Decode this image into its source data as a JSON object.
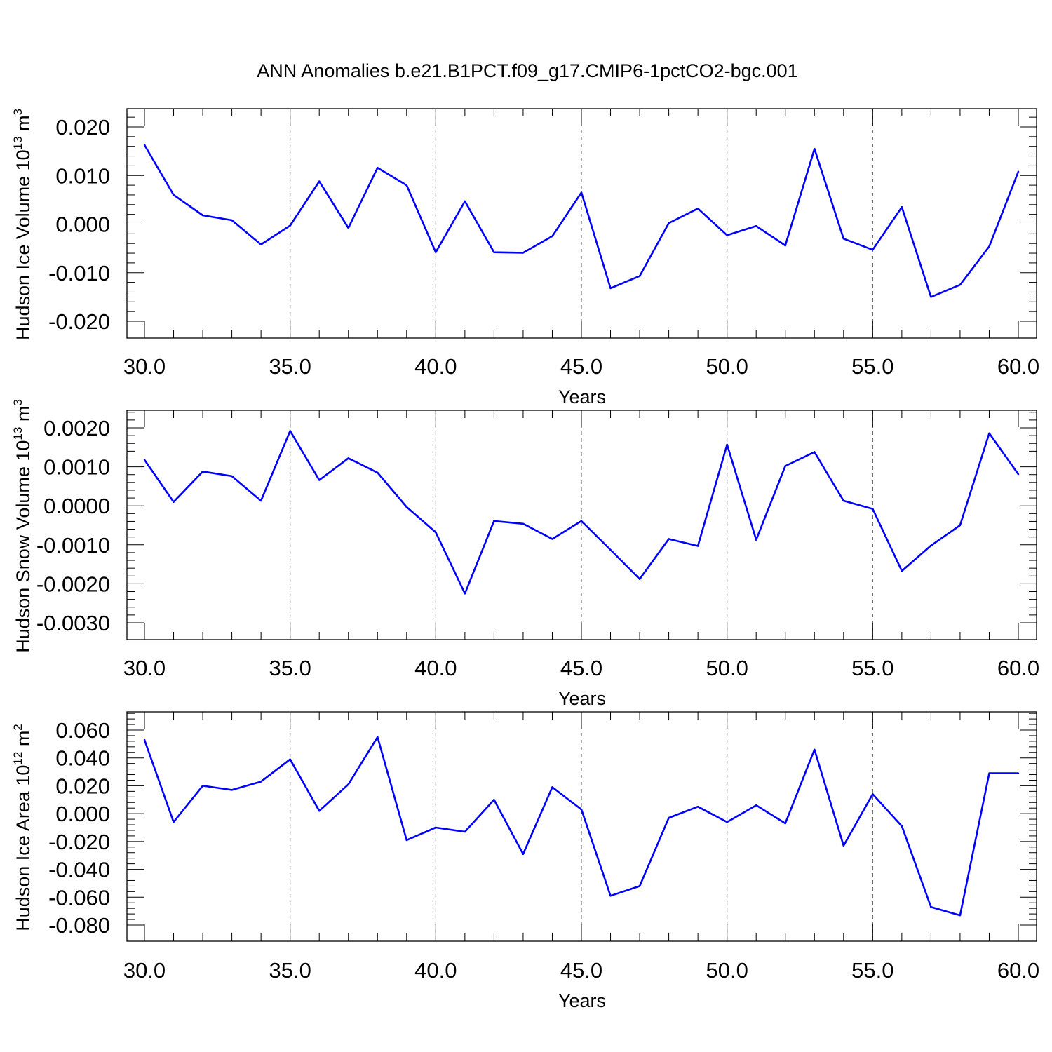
{
  "figure": {
    "title": "ANN Anomalies b.e21.B1PCT.f09_g17.CMIP6-1pctCO2-bgc.001"
  },
  "chart_data": [
    {
      "type": "line",
      "title": "",
      "xlabel": "Years",
      "ylabel": {
        "prefix": "Hudson Ice Volume 10",
        "exp": "13",
        "unit": " m",
        "unit_exp": "3"
      },
      "xlim": [
        30,
        60
      ],
      "ylim": [
        -0.02,
        0.02
      ],
      "x_ticks": [
        "30.0",
        "35.0",
        "40.0",
        "45.0",
        "50.0",
        "55.0",
        "60.0"
      ],
      "y_ticks": [
        "0.020",
        "0.010",
        "0.000",
        "-0.010",
        "-0.020"
      ],
      "y_tick_values": [
        0.02,
        0.01,
        0.0,
        -0.01,
        -0.02
      ],
      "y_minor_step": 0.002,
      "grid": "dashed vertical at major x ticks",
      "line_color": "#0000ff",
      "x": [
        30,
        31,
        32,
        33,
        34,
        35,
        36,
        37,
        38,
        39,
        40,
        41,
        42,
        43,
        44,
        45,
        46,
        47,
        48,
        49,
        50,
        51,
        52,
        53,
        54,
        55,
        56,
        57,
        58,
        59,
        60
      ],
      "values": [
        0.0163,
        0.006,
        0.0018,
        0.0008,
        -0.0042,
        -0.0003,
        0.0088,
        -0.0008,
        0.0116,
        0.008,
        -0.0058,
        0.0047,
        -0.0058,
        -0.0059,
        -0.0025,
        0.0065,
        -0.0132,
        -0.0107,
        0.0002,
        0.0032,
        -0.0023,
        -0.0004,
        -0.0044,
        0.0155,
        -0.003,
        -0.0053,
        0.0035,
        -0.015,
        -0.0125,
        -0.0046,
        0.0108
      ]
    },
    {
      "type": "line",
      "title": "",
      "xlabel": "Years",
      "ylabel": {
        "prefix": "Hudson Snow Volume 10",
        "exp": "13",
        "unit": " m",
        "unit_exp": "3"
      },
      "xlim": [
        30,
        60
      ],
      "ylim": [
        -0.003,
        0.0025
      ],
      "x_ticks": [
        "30.0",
        "35.0",
        "40.0",
        "45.0",
        "50.0",
        "55.0",
        "60.0"
      ],
      "y_ticks": [
        "0.0020",
        "0.0010",
        "0.0000",
        "-0.0010",
        "-0.0020",
        "-0.0030"
      ],
      "y_tick_values": [
        0.002,
        0.001,
        0.0,
        -0.001,
        -0.002,
        -0.003
      ],
      "y_minor_step": 0.0002,
      "grid": "dashed vertical at major x ticks",
      "line_color": "#0000ff",
      "x": [
        30,
        31,
        32,
        33,
        34,
        35,
        36,
        37,
        38,
        39,
        40,
        41,
        42,
        43,
        44,
        45,
        46,
        47,
        48,
        49,
        50,
        51,
        52,
        53,
        54,
        55,
        56,
        57,
        58,
        59,
        60
      ],
      "values": [
        0.00118,
        0.0001,
        0.00088,
        0.00076,
        0.00013,
        0.00192,
        0.00066,
        0.00122,
        0.00085,
        -3e-05,
        -0.00068,
        -0.00225,
        -0.00039,
        -0.00046,
        -0.00085,
        -0.00039,
        -0.00113,
        -0.00188,
        -0.00085,
        -0.00103,
        0.00157,
        -0.00087,
        0.00102,
        0.00138,
        0.00013,
        -8e-05,
        -0.00167,
        -0.00102,
        -0.0005,
        0.00186,
        0.00081
      ]
    },
    {
      "type": "line",
      "title": "",
      "xlabel": "Years",
      "ylabel": {
        "prefix": "Hudson Ice Area 10",
        "exp": "12",
        "unit": " m",
        "unit_exp": "2"
      },
      "xlim": [
        30,
        60
      ],
      "ylim": [
        -0.08,
        0.06
      ],
      "x_ticks": [
        "30.0",
        "35.0",
        "40.0",
        "45.0",
        "50.0",
        "55.0",
        "60.0"
      ],
      "y_ticks": [
        "0.060",
        "0.040",
        "0.020",
        "0.000",
        "-0.020",
        "-0.040",
        "-0.060",
        "-0.080"
      ],
      "y_tick_values": [
        0.06,
        0.04,
        0.02,
        0.0,
        -0.02,
        -0.04,
        -0.06,
        -0.08
      ],
      "y_minor_step": 0.004,
      "grid": "dashed vertical at major x ticks",
      "line_color": "#0000ff",
      "x": [
        30,
        31,
        32,
        33,
        34,
        35,
        36,
        37,
        38,
        39,
        40,
        41,
        42,
        43,
        44,
        45,
        46,
        47,
        48,
        49,
        50,
        51,
        52,
        53,
        54,
        55,
        56,
        57,
        58,
        59,
        60
      ],
      "values": [
        0.053,
        -0.006,
        0.02,
        0.017,
        0.023,
        0.039,
        0.002,
        0.021,
        0.055,
        -0.019,
        -0.01,
        -0.013,
        0.01,
        -0.029,
        0.019,
        0.003,
        -0.059,
        -0.052,
        -0.003,
        0.005,
        -0.006,
        0.006,
        -0.007,
        0.046,
        -0.023,
        0.014,
        -0.009,
        -0.067,
        -0.073,
        0.029,
        0.029
      ]
    }
  ]
}
